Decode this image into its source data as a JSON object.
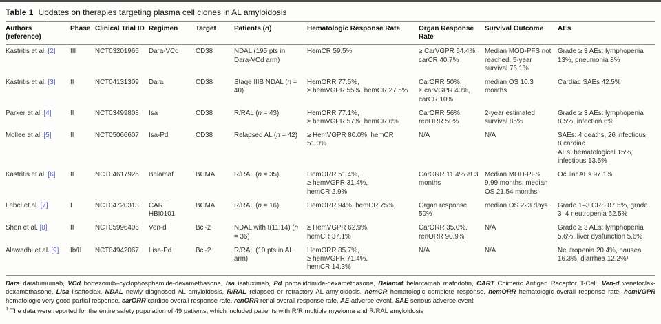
{
  "table": {
    "label": "Table 1",
    "title": "Updates on therapies targeting plasma cell clones in AL amyloidosis",
    "columns": [
      "Authors (reference)",
      "Phase",
      "Clinical Trial ID",
      "Regimen",
      "Target",
      "Patients (n)",
      "Hematologic Response Rate",
      "Organ Response Rate",
      "Survival Outcome",
      "AEs"
    ],
    "rows": [
      {
        "author": "Kastritis et al.",
        "ref": "[2]",
        "phase": "III",
        "trial_id": "NCT03201965",
        "regimen": "Dara-VCd",
        "target": "CD38",
        "patients": "NDAL (195 pts in Dara-VCd arm)",
        "hematologic": "HemCR 59.5%",
        "organ": "≥ CarVGPR 64.4%,\ncarCR 40.7%",
        "survival": "Median MOD-PFS not reached, 5-year survival 76.1%",
        "aes": "Grade ≥ 3 AEs: lymphopenia 13%, pneumonia 8%"
      },
      {
        "author": "Kastritis et al.",
        "ref": "[3]",
        "phase": "II",
        "trial_id": "NCT04131309",
        "regimen": "Dara",
        "target": "CD38",
        "patients": "Stage IIIB NDAL (n = 40)",
        "hematologic": "HemORR 77.5%,\n≥ hemVGPR 55%, hemCR 27.5%",
        "organ": "CarORR 50%,\n≥ carVGPR 40%,\ncarCR 10%",
        "survival": "median OS 10.3 months",
        "aes": "Cardiac SAEs 42.5%"
      },
      {
        "author": "Parker et al.",
        "ref": "[4]",
        "phase": "II",
        "trial_id": "NCT03499808",
        "regimen": "Isa",
        "target": "CD38",
        "patients": "R/RAL (n = 43)",
        "hematologic": "HemORR 77.1%,\n≥ hemVGPR 57%, hemCR 6%",
        "organ": "CarORR 56%,\nrenORR 50%",
        "survival": "2-year estimated survival 85%",
        "aes": "Grade ≥ 3 AEs: lymphopenia 8.5%, infection 6%"
      },
      {
        "author": "Mollee et al.",
        "ref": "[5]",
        "phase": "II",
        "trial_id": "NCT05066607",
        "regimen": "Isa-Pd",
        "target": "CD38",
        "patients": "Relapsed AL (n = 42)",
        "hematologic": "≥ HemVGPR 80.0%, hemCR 51.0%",
        "organ": "N/A",
        "survival": "N/A",
        "aes": "SAEs: 4 deaths, 26 infectious, 8 cardiac\nAEs: hematological 15%, infectious 13.5%"
      },
      {
        "author": "Kastritis et al.",
        "ref": "[6]",
        "phase": "II",
        "trial_id": "NCT04617925",
        "regimen": "Belamaf",
        "target": "BCMA",
        "patients": "R/RAL (n = 35)",
        "hematologic": "HemORR 51.4%,\n≥ hemVGPR 31.4%,\nhemCR 2.9%",
        "organ": "CarORR 11.4% at 3 months",
        "survival": "Median MOD-PFS 9.99 months, median OS 21.54 months",
        "aes": "Ocular AEs 97.1%"
      },
      {
        "author": "Lebel et al.",
        "ref": "[7]",
        "phase": "I",
        "trial_id": "NCT04720313",
        "regimen": "CART HBI0101",
        "target": "BCMA",
        "patients": "R/RAL (n = 16)",
        "hematologic": "HemORR 94%, hemCR 75%",
        "organ": "Organ response 50%",
        "survival": "median OS 223 days",
        "aes": "Grade 1–3 CRS 87.5%, grade 3–4 neutropenia 62.5%"
      },
      {
        "author": "Shen et al.",
        "ref": "[8]",
        "phase": "II",
        "trial_id": "NCT05996406",
        "regimen": "Ven-d",
        "target": "Bcl-2",
        "patients": "NDAL with t(11;14) (n = 36)",
        "hematologic": "≥ HemVGPR 62.9%,\nhemCR 37.1%",
        "organ": "CarORR 35.0%,\nrenORR 90.9%",
        "survival": "N/A",
        "aes": "Grade ≥ 3 AEs: lymphopenia 5.6%, liver dysfunction 5.6%"
      },
      {
        "author": "Alawadhi et al.",
        "ref": "[9]",
        "phase": "Ib/II",
        "trial_id": "NCT04942067",
        "regimen": "Lisa-Pd",
        "target": "Bcl-2",
        "patients": "R/RAL (10 pts in AL arm)",
        "hematologic": "HemORR 85.7%,\n≥ hemVGPR 71.4%,\nhemCR 14.3%",
        "organ": "N/A",
        "survival": "N/A",
        "aes": "Neutropenia 20.4%, nausea 16.3%, diarrhea 12.2%¹"
      }
    ]
  },
  "footnotes": {
    "abbreviations": [
      [
        "Dara",
        "daratumumab"
      ],
      [
        "VCd",
        "bortezomib–cyclophosphamide-dexamethasone"
      ],
      [
        "Isa",
        "isatuximab"
      ],
      [
        "Pd",
        "pomalidomide-dexamethasone"
      ],
      [
        "Belamaf",
        "belantamab mafodotin"
      ],
      [
        "CART",
        "Chimeric Antigen Receptor T-Cell"
      ],
      [
        "Ven-d",
        "venetoclax-dexamethasone"
      ],
      [
        "Lisa",
        "lisaftoclax"
      ],
      [
        "NDAL",
        "newly diagnosed AL amyloidosis"
      ],
      [
        "R/RAL",
        "relapsed or refractory AL amyloidosis"
      ],
      [
        "hemCR",
        "hematologic complete response"
      ],
      [
        "hemORR",
        "hematologic overall response rate"
      ],
      [
        "hemVGPR",
        "hematologic very good partial response"
      ],
      [
        "carORR",
        "cardiac overall response rate"
      ],
      [
        "renORR",
        "renal overall response rate"
      ],
      [
        "AE",
        "adverse event"
      ],
      [
        "SAE",
        "serious adverse event"
      ]
    ],
    "note1_marker": "1",
    "note1_text": "The data were reported for the entire safety population of 49 patients, which included patients with R/R multiple myeloma and R/RAL amyloidosis"
  },
  "colors": {
    "citation_link": "#5b63c0",
    "rule": "#8f8f8f",
    "text": "#2b2b2b"
  }
}
